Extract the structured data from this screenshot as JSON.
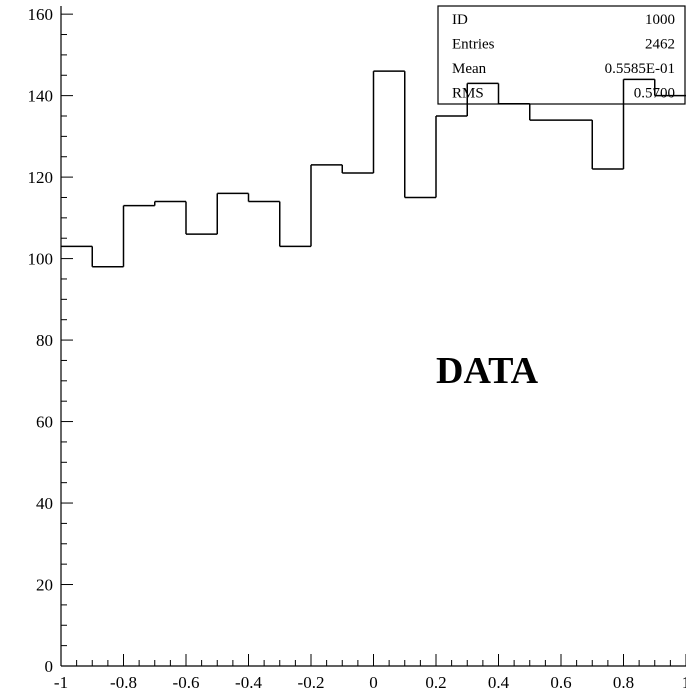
{
  "chart_data": {
    "type": "histogram",
    "title": "",
    "xlabel": "",
    "ylabel": "",
    "xlim": [
      -1,
      1
    ],
    "ylim": [
      0,
      162
    ],
    "x_ticks": [
      -1,
      -0.8,
      -0.6,
      -0.4,
      -0.2,
      0,
      0.2,
      0.4,
      0.6,
      0.8,
      1
    ],
    "x_tick_labels": [
      "-1",
      "-0.8",
      "-0.6",
      "-0.4",
      "-0.2",
      "0",
      "0.2",
      "0.4",
      "0.6",
      "0.8",
      "1"
    ],
    "y_ticks": [
      0,
      20,
      40,
      60,
      80,
      100,
      120,
      140,
      160
    ],
    "y_tick_labels": [
      "0",
      "20",
      "40",
      "60",
      "80",
      "100",
      "120",
      "140",
      "160"
    ],
    "bin_edges": [
      -1,
      -0.9,
      -0.8,
      -0.7,
      -0.6,
      -0.5,
      -0.4,
      -0.3,
      -0.2,
      -0.1,
      0,
      0.1,
      0.2,
      0.3,
      0.4,
      0.5,
      0.6,
      0.7,
      0.8,
      0.9,
      1
    ],
    "values": [
      103,
      98,
      113,
      114,
      106,
      116,
      114,
      103,
      123,
      121,
      146,
      115,
      135,
      143,
      138,
      134,
      134,
      122,
      144,
      140
    ],
    "grid": false,
    "stats_box": {
      "position": "top-right",
      "rows": [
        {
          "label": "ID",
          "value": "1000"
        },
        {
          "label": "Entries",
          "value": "2462"
        },
        {
          "label": "Mean",
          "value": "0.5585E-01"
        },
        {
          "label": "RMS",
          "value": "0.5700"
        }
      ]
    },
    "annotation": "DATA",
    "colors": {
      "line": "#000000",
      "background": "#ffffff"
    }
  }
}
